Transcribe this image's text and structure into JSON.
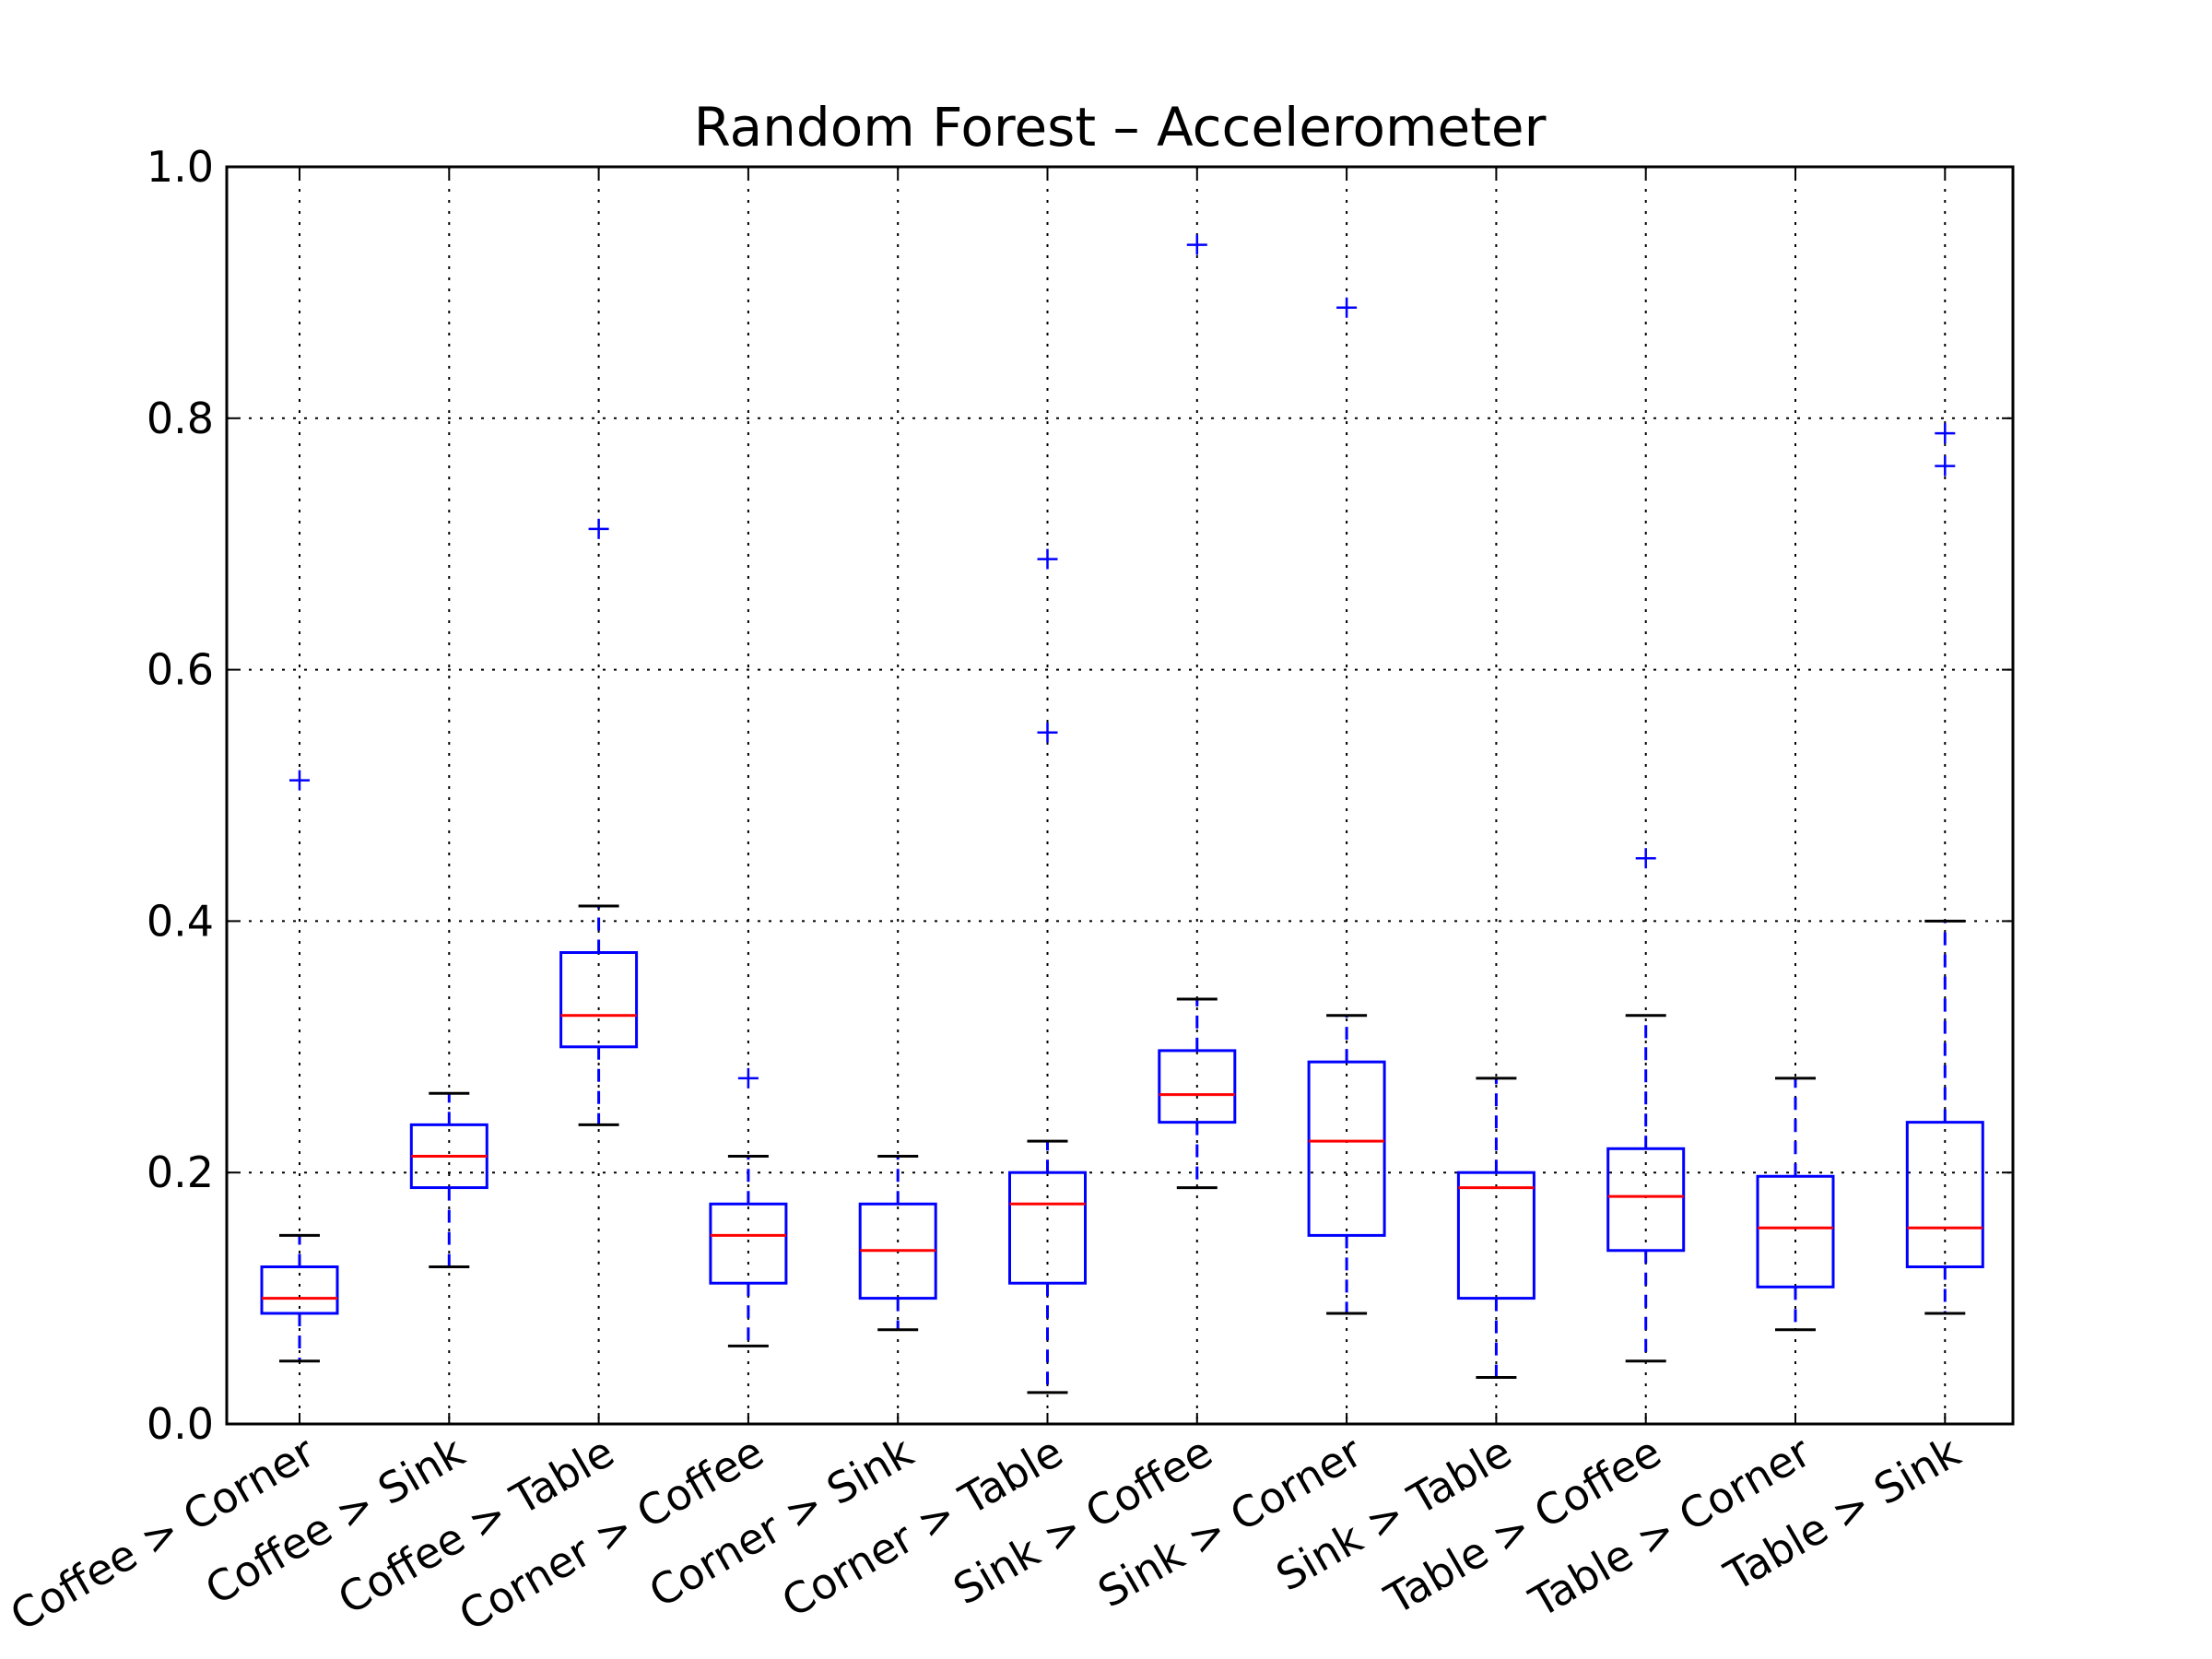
{
  "chart_data": {
    "type": "box",
    "title": "Random Forest – Accelerometer",
    "xlabel": "",
    "ylabel": "",
    "ylim": [
      0.0,
      1.0
    ],
    "yticks": [
      "0.0",
      "0.2",
      "0.4",
      "0.6",
      "0.8",
      "1.0"
    ],
    "grid": true,
    "colors": {
      "box": "#0000ff",
      "median": "#ff0000",
      "cap": "#000000",
      "flier": "#0000ff"
    },
    "categories": [
      "Coffee > Corner",
      "Coffee > Sink",
      "Coffee > Table",
      "Corner > Coffee",
      "Corner > Sink",
      "Corner > Table",
      "Sink > Coffee",
      "Sink > Corner",
      "Sink > Table",
      "Table > Coffee",
      "Table > Corner",
      "Table > Sink"
    ],
    "boxes": [
      {
        "whisker_low": 0.05,
        "q1": 0.088,
        "median": 0.1,
        "q3": 0.125,
        "whisker_high": 0.15,
        "fliers": [
          0.512
        ]
      },
      {
        "whisker_low": 0.125,
        "q1": 0.188,
        "median": 0.213,
        "q3": 0.238,
        "whisker_high": 0.263,
        "fliers": []
      },
      {
        "whisker_low": 0.238,
        "q1": 0.3,
        "median": 0.325,
        "q3": 0.375,
        "whisker_high": 0.412,
        "fliers": [
          0.712
        ]
      },
      {
        "whisker_low": 0.062,
        "q1": 0.112,
        "median": 0.15,
        "q3": 0.175,
        "whisker_high": 0.213,
        "fliers": [
          0.275
        ]
      },
      {
        "whisker_low": 0.075,
        "q1": 0.1,
        "median": 0.138,
        "q3": 0.175,
        "whisker_high": 0.213,
        "fliers": []
      },
      {
        "whisker_low": 0.025,
        "q1": 0.112,
        "median": 0.175,
        "q3": 0.2,
        "whisker_high": 0.225,
        "fliers": [
          0.688,
          0.55
        ]
      },
      {
        "whisker_low": 0.188,
        "q1": 0.24,
        "median": 0.262,
        "q3": 0.297,
        "whisker_high": 0.338,
        "fliers": [
          0.938
        ]
      },
      {
        "whisker_low": 0.088,
        "q1": 0.15,
        "median": 0.225,
        "q3": 0.288,
        "whisker_high": 0.325,
        "fliers": [
          0.888
        ]
      },
      {
        "whisker_low": 0.037,
        "q1": 0.1,
        "median": 0.188,
        "q3": 0.2,
        "whisker_high": 0.275,
        "fliers": []
      },
      {
        "whisker_low": 0.05,
        "q1": 0.138,
        "median": 0.181,
        "q3": 0.219,
        "whisker_high": 0.325,
        "fliers": [
          0.45
        ]
      },
      {
        "whisker_low": 0.075,
        "q1": 0.109,
        "median": 0.156,
        "q3": 0.197,
        "whisker_high": 0.275,
        "fliers": []
      },
      {
        "whisker_low": 0.088,
        "q1": 0.125,
        "median": 0.156,
        "q3": 0.24,
        "whisker_high": 0.4,
        "fliers": [
          0.788,
          0.762
        ]
      }
    ]
  }
}
